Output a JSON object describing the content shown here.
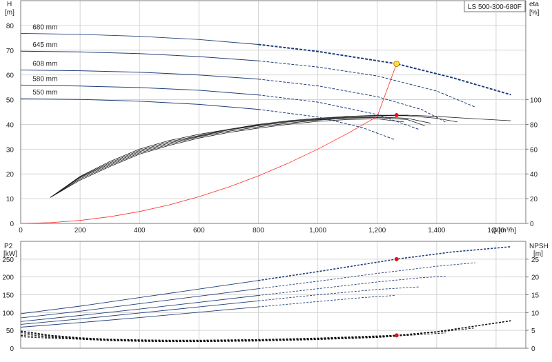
{
  "chart_data": [
    {
      "type": "line",
      "title": "LS 500-300-680F",
      "left_axis": {
        "label_line1": "H",
        "label_line2": "[m]",
        "ylim": [
          0,
          90
        ],
        "ticks": [
          0,
          10,
          20,
          30,
          40,
          50,
          60,
          70,
          80
        ]
      },
      "right_axis": {
        "label_line1": "eta",
        "label_line2": "[%]",
        "ylim": [
          0,
          180
        ],
        "ticks": [
          0,
          20,
          40,
          60,
          80,
          100
        ]
      },
      "x_axis": {
        "label": "Q [m³/h]",
        "xlim": [
          0,
          1700
        ],
        "ticks": [
          0,
          200,
          400,
          600,
          800,
          1000,
          1200,
          1400,
          1600
        ],
        "tick_labels": [
          "0",
          "200",
          "400",
          "600",
          "800",
          "1,000",
          "1,200",
          "1,400",
          "1,600"
        ]
      },
      "head_curves": [
        {
          "name": "680 mm",
          "x": [
            0,
            200,
            400,
            600,
            800,
            1000,
            1265,
            1450,
            1650
          ],
          "y": [
            76.8,
            76.4,
            75.6,
            74.3,
            72.3,
            69.5,
            64.5,
            59.0,
            52.0
          ]
        },
        {
          "name": "645 mm",
          "x": [
            0,
            200,
            400,
            600,
            800,
            1000,
            1200,
            1400,
            1530
          ],
          "y": [
            69.6,
            69.3,
            68.6,
            67.4,
            65.7,
            63.2,
            59.6,
            53.5,
            47.0
          ]
        },
        {
          "name": "608 mm",
          "x": [
            0,
            200,
            400,
            600,
            800,
            1000,
            1200,
            1350,
            1430
          ],
          "y": [
            62.0,
            61.7,
            61.1,
            60.0,
            58.3,
            55.6,
            51.2,
            46.0,
            41.0
          ]
        },
        {
          "name": "580 mm",
          "x": [
            0,
            200,
            400,
            600,
            800,
            1000,
            1200,
            1340
          ],
          "y": [
            55.9,
            55.5,
            54.9,
            53.8,
            51.9,
            49.0,
            44.0,
            38.0
          ]
        },
        {
          "name": "550 mm",
          "x": [
            0,
            200,
            400,
            600,
            800,
            1000,
            1150,
            1260
          ],
          "y": [
            50.4,
            50.1,
            49.4,
            48.1,
            46.1,
            43.0,
            38.7,
            33.8
          ]
        }
      ],
      "efficiency_curves": [
        {
          "x": [
            100,
            200,
            300,
            400,
            500,
            600,
            700,
            800,
            900,
            1000,
            1100,
            1200,
            1300,
            1400,
            1500,
            1650
          ],
          "y": [
            21,
            38,
            50,
            60,
            67,
            72,
            76,
            80,
            83,
            85,
            86.5,
            87.4,
            87.5,
            86.5,
            85,
            83
          ]
        },
        {
          "x": [
            100,
            200,
            300,
            400,
            500,
            600,
            700,
            800,
            900,
            1000,
            1100,
            1200,
            1300,
            1400,
            1470
          ],
          "y": [
            21,
            37.5,
            49,
            59,
            66,
            71,
            76,
            79.5,
            82.5,
            84.5,
            86,
            87,
            87,
            85,
            82
          ]
        },
        {
          "x": [
            100,
            200,
            300,
            400,
            500,
            600,
            700,
            800,
            900,
            1000,
            1100,
            1200,
            1300,
            1380
          ],
          "y": [
            21,
            37,
            48,
            58,
            65,
            70.5,
            75.5,
            79,
            82,
            84,
            85.5,
            86,
            85,
            81
          ]
        },
        {
          "x": [
            100,
            200,
            300,
            400,
            500,
            600,
            700,
            800,
            900,
            1000,
            1100,
            1200,
            1300,
            1360
          ],
          "y": [
            21,
            36,
            47,
            57,
            64,
            70,
            74.5,
            78,
            81,
            83.5,
            85,
            85.5,
            84,
            79
          ]
        },
        {
          "x": [
            100,
            200,
            300,
            400,
            500,
            600,
            700,
            800,
            900,
            1000,
            1100,
            1200,
            1290
          ],
          "y": [
            21,
            35,
            46,
            56,
            63,
            69,
            73.5,
            77,
            80,
            82.5,
            84,
            84.5,
            82
          ]
        }
      ],
      "system_curve": {
        "x": [
          0,
          100,
          200,
          300,
          400,
          500,
          600,
          700,
          800,
          900,
          1000,
          1100,
          1200,
          1265
        ],
        "y": [
          0,
          0.3,
          1.2,
          2.7,
          4.8,
          7.5,
          10.8,
          14.7,
          19.2,
          24.3,
          30.0,
          36.3,
          43.2,
          64.5
        ]
      },
      "duty_point": {
        "x": 1265,
        "y": 64.5
      },
      "eta_point": {
        "x": 1265,
        "y": 87.5
      }
    },
    {
      "type": "line",
      "left_axis": {
        "label_line1": "P2",
        "label_line2": "[kW]",
        "ylim": [
          0,
          300
        ],
        "ticks": [
          0,
          50,
          100,
          150,
          200,
          250
        ]
      },
      "right_axis": {
        "label_line1": "NPSH",
        "label_line2": "[m]",
        "ylim": [
          0,
          30
        ],
        "ticks": [
          0,
          5,
          10,
          15,
          20,
          25
        ]
      },
      "x_axis": {
        "xlim": [
          0,
          1700
        ],
        "ticks": [
          0,
          200,
          400,
          600,
          800,
          1000,
          1200,
          1400,
          1600
        ]
      },
      "power_curves": [
        {
          "x": [
            0,
            200,
            400,
            600,
            800,
            1000,
            1265,
            1450,
            1650
          ],
          "y": [
            97,
            118,
            142,
            166,
            190,
            215,
            250,
            270,
            285
          ]
        },
        {
          "x": [
            0,
            200,
            400,
            600,
            800,
            1000,
            1200,
            1400,
            1530
          ],
          "y": [
            85,
            104,
            125,
            146,
            167,
            188,
            210,
            230,
            240
          ]
        },
        {
          "x": [
            0,
            200,
            400,
            600,
            800,
            1000,
            1200,
            1350,
            1430
          ],
          "y": [
            75,
            92,
            110,
            129,
            148,
            167,
            186,
            198,
            202
          ]
        },
        {
          "x": [
            0,
            200,
            400,
            600,
            800,
            1000,
            1200,
            1340
          ],
          "y": [
            67,
            82,
            99,
            116,
            133,
            150,
            165,
            172
          ]
        },
        {
          "x": [
            0,
            200,
            400,
            600,
            800,
            1000,
            1150,
            1260
          ],
          "y": [
            59,
            72,
            86,
            101,
            116,
            131,
            142,
            148
          ]
        }
      ],
      "npsh_curves": [
        {
          "x": [
            0,
            100,
            200,
            300,
            400,
            500,
            600,
            700,
            800,
            900,
            1000,
            1100,
            1200,
            1265,
            1400,
            1650
          ],
          "y": [
            4.8,
            3.6,
            2.9,
            2.5,
            2.3,
            2.2,
            2.2,
            2.3,
            2.4,
            2.6,
            2.8,
            3.1,
            3.4,
            3.6,
            4.6,
            7.7
          ]
        },
        {
          "x": [
            0,
            100,
            200,
            300,
            400,
            500,
            600,
            700,
            800,
            900,
            1000,
            1100,
            1200,
            1300,
            1400,
            1530
          ],
          "y": [
            4.4,
            3.4,
            2.8,
            2.4,
            2.2,
            2.1,
            2.1,
            2.2,
            2.3,
            2.5,
            2.7,
            3.0,
            3.3,
            3.8,
            4.5,
            5.7
          ]
        },
        {
          "x": [
            0,
            100,
            200,
            300,
            400,
            500,
            600,
            700,
            800,
            900,
            1000,
            1100,
            1200,
            1300,
            1430
          ],
          "y": [
            4.0,
            3.2,
            2.7,
            2.3,
            2.1,
            2.0,
            2.0,
            2.1,
            2.2,
            2.4,
            2.6,
            2.9,
            3.2,
            3.6,
            4.3
          ]
        },
        {
          "x": [
            0,
            100,
            200,
            300,
            400,
            500,
            600,
            700,
            800,
            900,
            1000,
            1100,
            1200,
            1340
          ],
          "y": [
            3.6,
            3.0,
            2.6,
            2.2,
            2.0,
            1.9,
            1.9,
            2.0,
            2.1,
            2.3,
            2.5,
            2.8,
            3.1,
            3.8
          ]
        },
        {
          "x": [
            0,
            100,
            200,
            300,
            400,
            500,
            600,
            700,
            800,
            900,
            1000,
            1100,
            1200,
            1260
          ],
          "y": [
            3.2,
            2.8,
            2.5,
            2.1,
            1.9,
            1.8,
            1.8,
            1.9,
            2.0,
            2.2,
            2.4,
            2.7,
            3.0,
            3.3
          ]
        }
      ],
      "power_point": {
        "x": 1265,
        "y": 250
      },
      "npsh_point": {
        "x": 1265,
        "y": 3.6
      }
    }
  ],
  "colors": {
    "head": "#1f3e78",
    "eta": "#1a1a1a",
    "system": "#ff2a2a",
    "duty_fill": "#ffe23a",
    "point": "#e8101a",
    "grid": "#d4d4d4"
  }
}
